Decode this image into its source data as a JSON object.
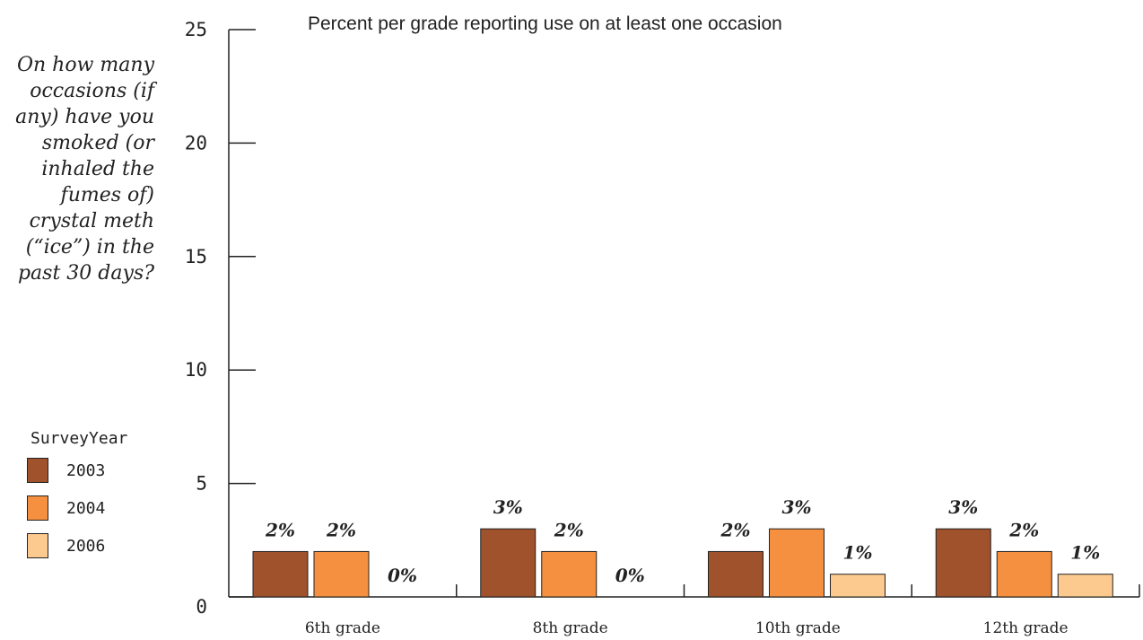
{
  "question": "On how many occasions (if any) have you smoked (or inhaled the fumes of) crystal meth (“ice”) in the past 30 days?",
  "legend": {
    "title": "SurveyYear",
    "items": [
      {
        "label": "2003",
        "color": "#a0522d"
      },
      {
        "label": "2004",
        "color": "#f4903f"
      },
      {
        "label": "2006",
        "color": "#fcc98e"
      }
    ]
  },
  "chart_data": {
    "type": "bar",
    "title": "Percent per grade reporting use on at least one occasion",
    "xlabel": "",
    "ylabel": "",
    "ylim": [
      0,
      25
    ],
    "yticks": [
      0,
      5,
      10,
      15,
      20,
      25
    ],
    "categories": [
      "6th grade",
      "8th grade",
      "10th grade",
      "12th grade"
    ],
    "series": [
      {
        "name": "2003",
        "values": [
          2,
          3,
          2,
          3
        ],
        "labels": [
          "2%",
          "3%",
          "2%",
          "3%"
        ]
      },
      {
        "name": "2004",
        "values": [
          2,
          2,
          3,
          2
        ],
        "labels": [
          "2%",
          "2%",
          "3%",
          "2%"
        ]
      },
      {
        "name": "2006",
        "values": [
          0,
          0,
          1,
          1
        ],
        "labels": [
          "0%",
          "0%",
          "1%",
          "1%"
        ]
      }
    ],
    "grid": false,
    "legend_position": "left"
  }
}
